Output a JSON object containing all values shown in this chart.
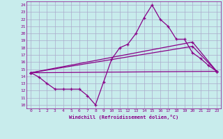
{
  "xlabel": "Windchill (Refroidissement éolien,°C)",
  "background_color": "#c8ecec",
  "grid_color": "#aaaacc",
  "line_color": "#880088",
  "xlim": [
    -0.5,
    23.5
  ],
  "ylim": [
    9.5,
    24.5
  ],
  "xticks": [
    0,
    1,
    2,
    3,
    4,
    5,
    6,
    7,
    8,
    9,
    10,
    11,
    12,
    13,
    14,
    15,
    16,
    17,
    18,
    19,
    20,
    21,
    22,
    23
  ],
  "yticks": [
    10,
    11,
    12,
    13,
    14,
    15,
    16,
    17,
    18,
    19,
    20,
    21,
    22,
    23,
    24
  ],
  "line1_x": [
    0,
    1,
    2,
    3,
    4,
    5,
    6,
    7,
    8,
    9,
    10,
    11,
    12,
    13,
    14,
    15,
    16,
    17,
    18,
    19,
    20,
    21,
    22,
    23
  ],
  "line1_y": [
    14.5,
    13.9,
    13.0,
    12.2,
    12.2,
    12.2,
    12.2,
    11.3,
    10.0,
    13.2,
    16.4,
    18.0,
    18.5,
    20.0,
    22.2,
    24.0,
    22.0,
    21.0,
    19.2,
    19.2,
    17.3,
    16.5,
    15.5,
    14.7
  ],
  "line2_x": [
    0,
    23
  ],
  "line2_y": [
    14.5,
    14.7
  ],
  "line3_x": [
    0,
    20,
    23
  ],
  "line3_y": [
    14.5,
    18.2,
    14.7
  ],
  "line4_x": [
    0,
    20,
    23
  ],
  "line4_y": [
    14.5,
    18.8,
    14.7
  ]
}
